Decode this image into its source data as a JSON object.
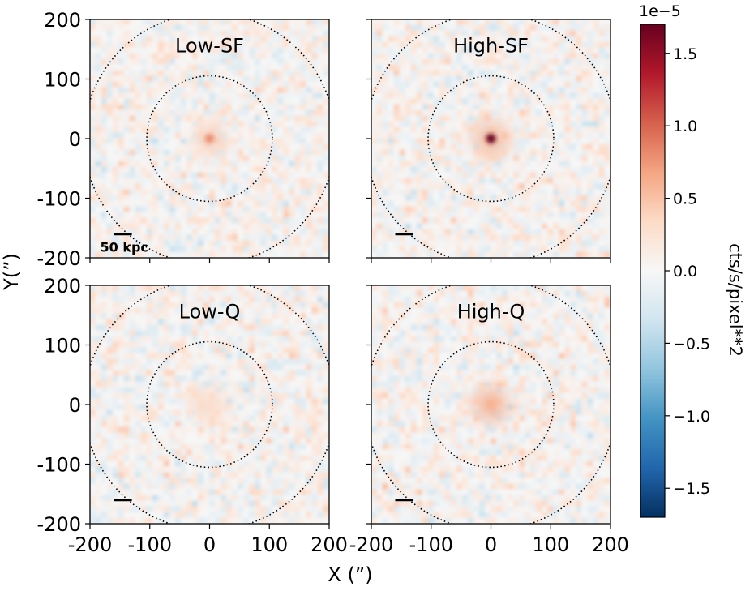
{
  "chart_data": {
    "type": "heatmap",
    "panels": [
      {
        "label": "Low-SF",
        "center_peak": 0.8,
        "halo": 0.15,
        "scale_bar_label": "50 kpc",
        "x_ticks_shown": false,
        "y_ticks_shown": true
      },
      {
        "label": "High-SF",
        "center_peak": 1.7,
        "halo": 0.35,
        "scale_bar_label": "",
        "x_ticks_shown": false,
        "y_ticks_shown": false
      },
      {
        "label": "Low-Q",
        "center_peak": 0.3,
        "halo": 0.1,
        "scale_bar_label": "",
        "x_ticks_shown": true,
        "y_ticks_shown": true
      },
      {
        "label": "High-Q",
        "center_peak": 0.6,
        "halo": 0.4,
        "scale_bar_label": "",
        "x_ticks_shown": true,
        "y_ticks_shown": false
      }
    ],
    "xlabel": "X (”)",
    "ylabel": "Y(”)",
    "xlim": [
      -200,
      200
    ],
    "ylim": [
      -200,
      200
    ],
    "x_ticks": [
      -200,
      -100,
      0,
      100,
      200
    ],
    "x_tick_labels": [
      "-200",
      "-100",
      "0",
      "100",
      "200"
    ],
    "y_ticks": [
      200,
      100,
      0,
      -100,
      -200
    ],
    "y_tick_labels": [
      "200",
      "100",
      "0",
      "-100",
      "-200"
    ],
    "circles_radius_arcsec": [
      105,
      210
    ],
    "scale_bar_length_arcsec": 30,
    "colorbar": {
      "label": "cts/s/pixel**2",
      "multiplier": "1e−5",
      "vmin": -1.7,
      "vmax": 1.7,
      "ticks": [
        1.5,
        1.0,
        0.5,
        0.0,
        -0.5,
        -1.0,
        -1.5
      ],
      "tick_labels": [
        "1.5",
        "1.0",
        "0.5",
        "0.0",
        "−0.5",
        "−1.0",
        "−1.5"
      ],
      "colormap": "RdBu_r",
      "stops": [
        "#053061",
        "#2166ac",
        "#4393c3",
        "#92c5de",
        "#d1e5f0",
        "#f7f7f7",
        "#fddbc7",
        "#f4a582",
        "#d6604d",
        "#b2182b",
        "#67001f"
      ]
    }
  }
}
